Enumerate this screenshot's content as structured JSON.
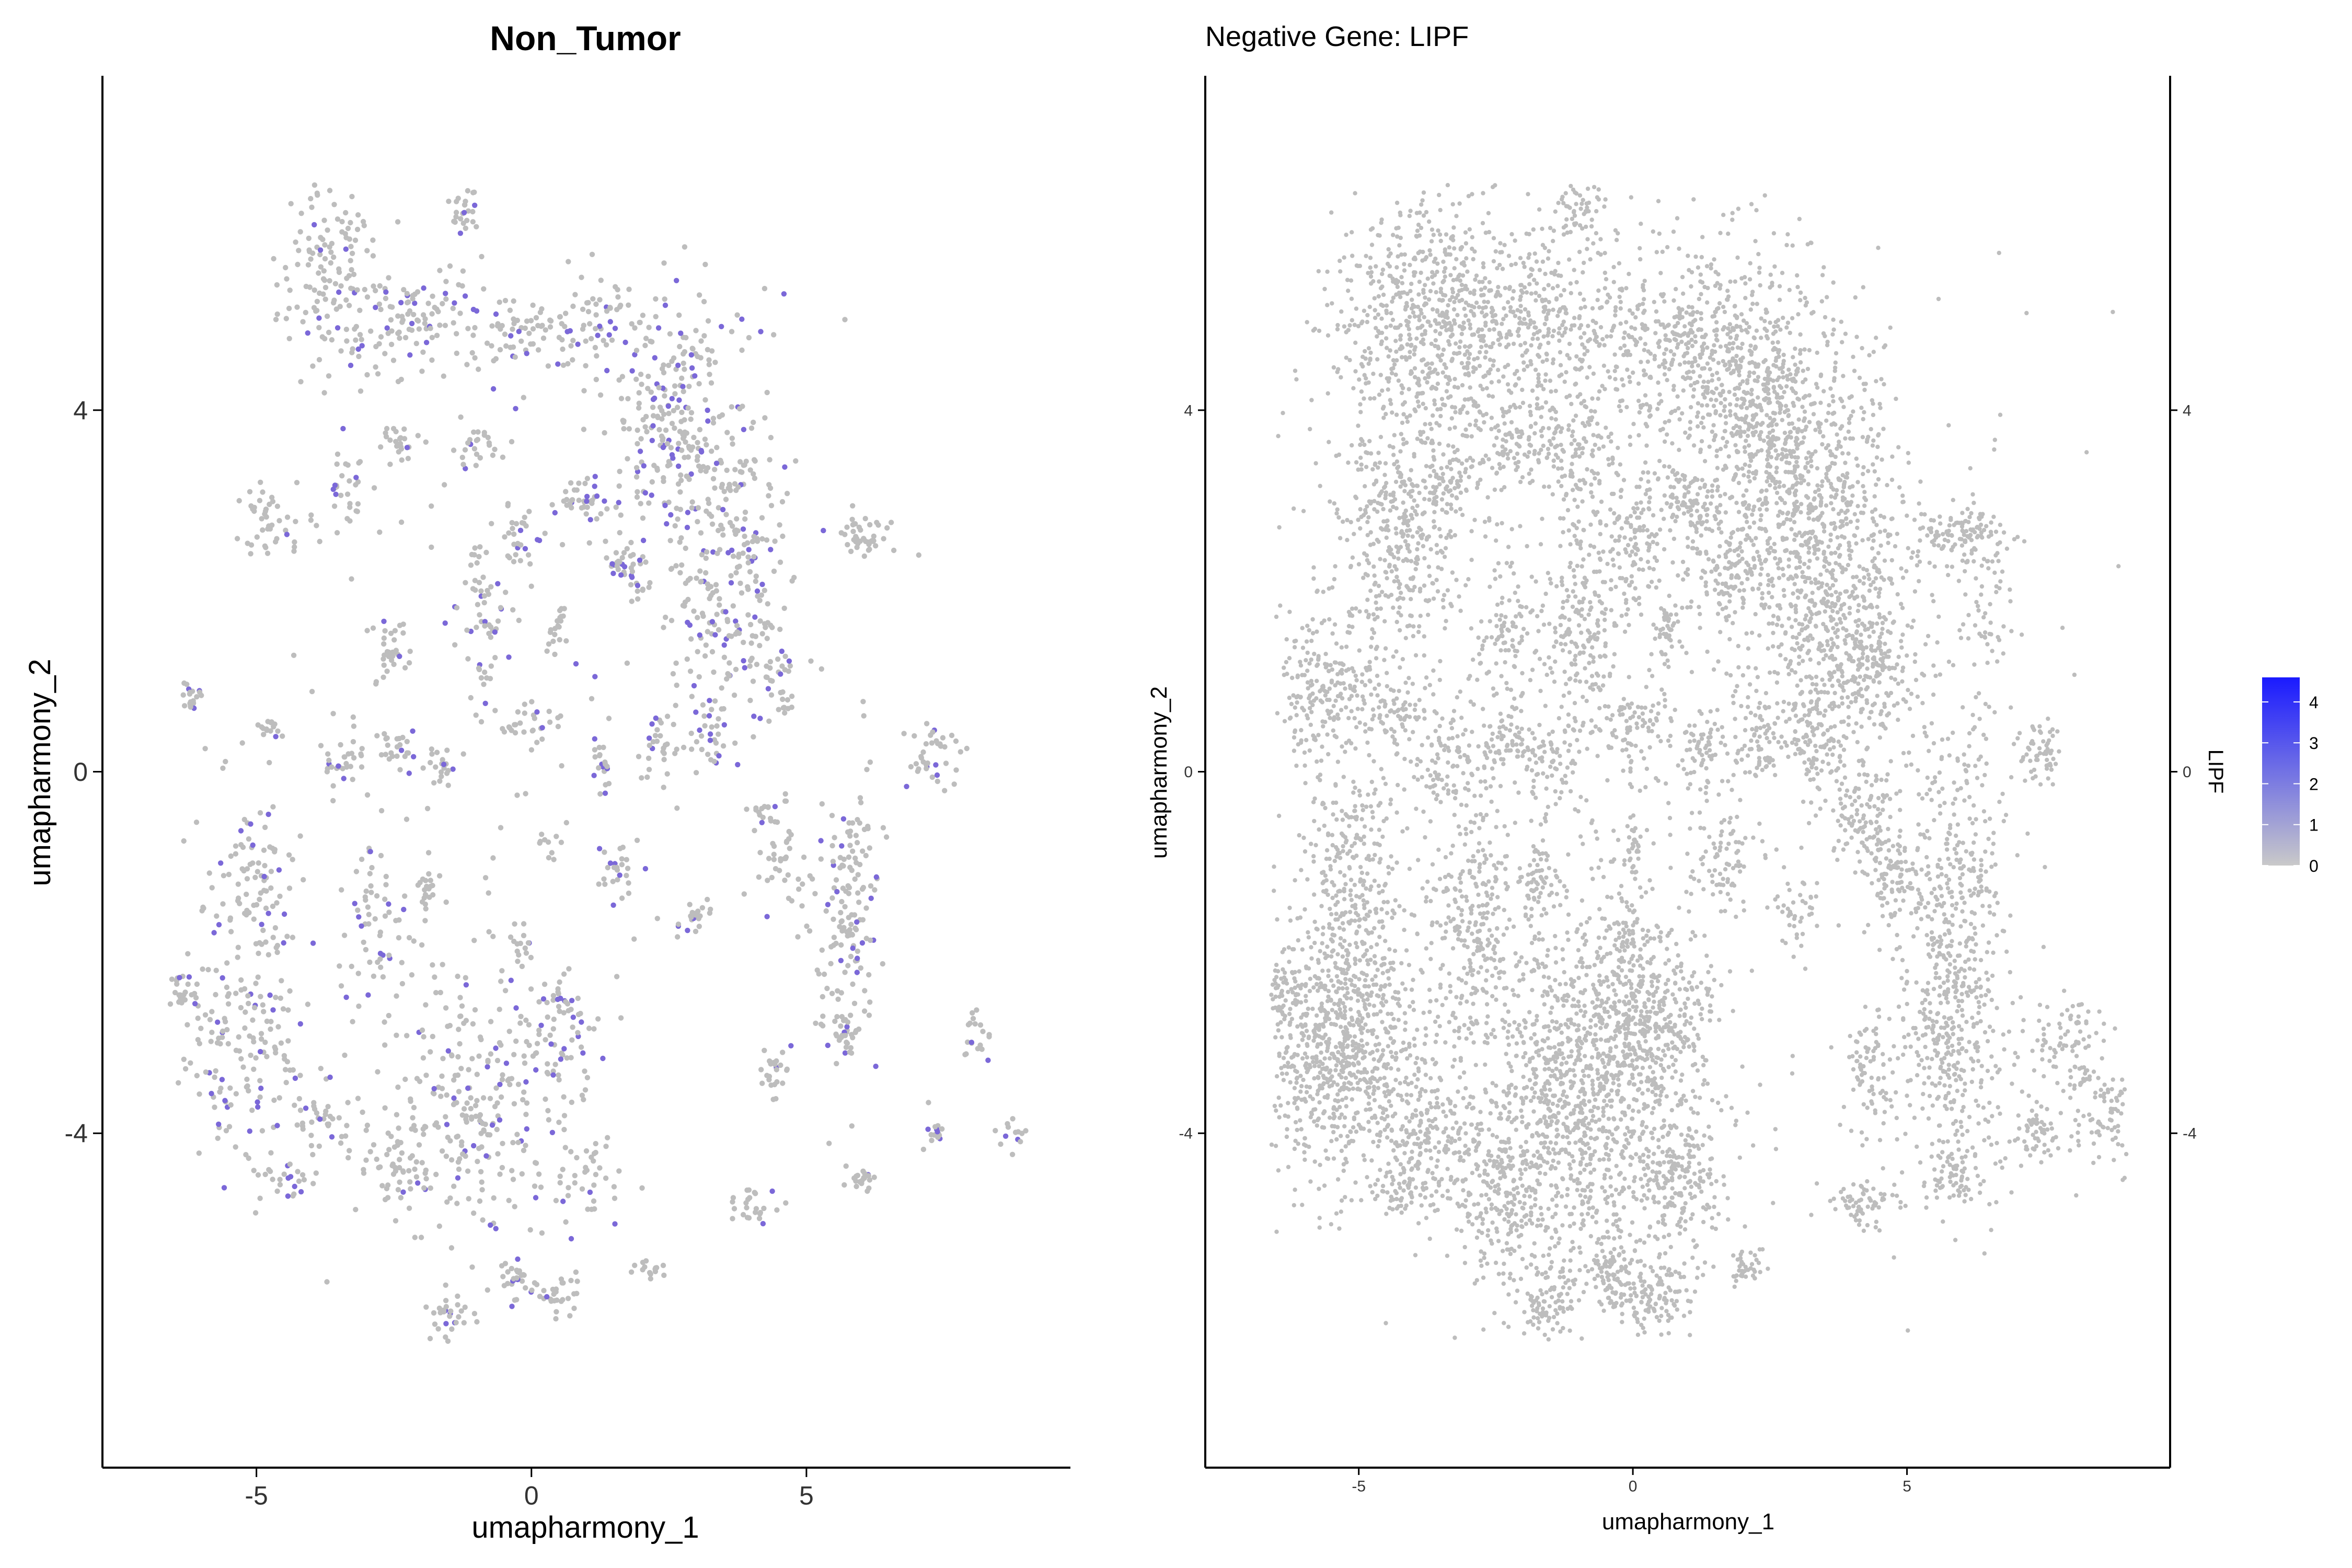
{
  "chart_data": [
    {
      "type": "scatter",
      "title": "Non_Tumor",
      "xlabel": "umapharmony_1",
      "ylabel": "umapharmony_2",
      "xlim": [
        -7.8,
        9.8
      ],
      "ylim": [
        -7.7,
        7.7
      ],
      "x_ticks": [
        -5,
        0,
        5
      ],
      "y_ticks": [
        -4,
        0,
        4
      ],
      "x_tick_labels": [
        "-5",
        "0",
        "5"
      ],
      "y_tick_labels": [
        "-4",
        "0",
        "4"
      ],
      "grid": false,
      "point_color_zero": "#bdbdbd",
      "point_color_expr": "#7b68d8",
      "clusters": [
        {
          "x": -3.6,
          "y": 5.5,
          "sx": 0.5,
          "sy": 0.55,
          "n": 130,
          "f": 0.08
        },
        {
          "x": -1.2,
          "y": 6.2,
          "sx": 0.15,
          "sy": 0.15,
          "n": 25,
          "f": 0.04
        },
        {
          "x": -2.0,
          "y": 5.0,
          "sx": 0.8,
          "sy": 0.3,
          "n": 120,
          "f": 0.1
        },
        {
          "x": 0.5,
          "y": 4.9,
          "sx": 0.9,
          "sy": 0.25,
          "n": 120,
          "f": 0.15
        },
        {
          "x": 2.6,
          "y": 3.9,
          "sx": 0.6,
          "sy": 0.7,
          "n": 240,
          "f": 0.12
        },
        {
          "x": 3.6,
          "y": 2.2,
          "sx": 0.6,
          "sy": 0.9,
          "n": 250,
          "f": 0.15
        },
        {
          "x": -4.6,
          "y": 2.8,
          "sx": 0.35,
          "sy": 0.2,
          "n": 45,
          "f": 0.1
        },
        {
          "x": -3.4,
          "y": 3.2,
          "sx": 0.25,
          "sy": 0.2,
          "n": 30,
          "f": 0.1
        },
        {
          "x": -2.4,
          "y": 3.6,
          "sx": 0.2,
          "sy": 0.1,
          "n": 25,
          "f": 0.1
        },
        {
          "x": -1.0,
          "y": 3.6,
          "sx": 0.2,
          "sy": 0.12,
          "n": 25,
          "f": 0.1
        },
        {
          "x": -0.2,
          "y": 2.6,
          "sx": 0.15,
          "sy": 0.2,
          "n": 25,
          "f": 0.1
        },
        {
          "x": 1.0,
          "y": 3.0,
          "sx": 0.25,
          "sy": 0.2,
          "n": 40,
          "f": 0.2
        },
        {
          "x": -0.9,
          "y": 1.8,
          "sx": 0.25,
          "sy": 0.5,
          "n": 60,
          "f": 0.15
        },
        {
          "x": -2.6,
          "y": 1.4,
          "sx": 0.15,
          "sy": 0.2,
          "n": 30,
          "f": 0.1
        },
        {
          "x": 1.7,
          "y": 2.2,
          "sx": 0.2,
          "sy": 0.15,
          "n": 35,
          "f": 0.15
        },
        {
          "x": 0.5,
          "y": 1.6,
          "sx": 0.1,
          "sy": 0.15,
          "n": 20,
          "f": 0.05
        },
        {
          "x": -6.2,
          "y": 0.8,
          "sx": 0.15,
          "sy": 0.12,
          "n": 20,
          "f": 0.15
        },
        {
          "x": -4.8,
          "y": 0.5,
          "sx": 0.15,
          "sy": 0.1,
          "n": 15,
          "f": 0.1
        },
        {
          "x": -3.4,
          "y": 0.1,
          "sx": 0.2,
          "sy": 0.15,
          "n": 25,
          "f": 0.1
        },
        {
          "x": -2.5,
          "y": 0.3,
          "sx": 0.2,
          "sy": 0.15,
          "n": 25,
          "f": 0.1
        },
        {
          "x": -1.6,
          "y": 0.1,
          "sx": 0.15,
          "sy": 0.15,
          "n": 20,
          "f": 0.1
        },
        {
          "x": 0.0,
          "y": 0.5,
          "sx": 0.25,
          "sy": 0.1,
          "n": 25,
          "f": 0.1
        },
        {
          "x": 1.3,
          "y": 0.1,
          "sx": 0.12,
          "sy": 0.15,
          "n": 20,
          "f": 0.3
        },
        {
          "x": 2.3,
          "y": 0.3,
          "sx": 0.15,
          "sy": 0.2,
          "n": 25,
          "f": 0.2
        },
        {
          "x": 3.2,
          "y": 0.4,
          "sx": 0.2,
          "sy": 0.2,
          "n": 30,
          "f": 0.15
        },
        {
          "x": 4.5,
          "y": 1.0,
          "sx": 0.2,
          "sy": 0.2,
          "n": 30,
          "f": 0.1
        },
        {
          "x": 6.0,
          "y": 2.6,
          "sx": 0.3,
          "sy": 0.12,
          "n": 40,
          "f": 0.1
        },
        {
          "x": 7.3,
          "y": 0.2,
          "sx": 0.25,
          "sy": 0.2,
          "n": 40,
          "f": 0.1
        },
        {
          "x": 4.2,
          "y": -0.5,
          "sx": 0.15,
          "sy": 0.15,
          "n": 20,
          "f": 0.1
        },
        {
          "x": 4.6,
          "y": -1.0,
          "sx": 0.2,
          "sy": 0.2,
          "n": 30,
          "f": 0.1
        },
        {
          "x": 5.8,
          "y": -1.6,
          "sx": 0.3,
          "sy": 0.8,
          "n": 150,
          "f": 0.12
        },
        {
          "x": 5.7,
          "y": -2.8,
          "sx": 0.12,
          "sy": 0.2,
          "n": 25,
          "f": 0.05
        },
        {
          "x": -5.0,
          "y": -1.2,
          "sx": 0.4,
          "sy": 0.4,
          "n": 80,
          "f": 0.12
        },
        {
          "x": -2.8,
          "y": -1.8,
          "sx": 0.3,
          "sy": 0.6,
          "n": 60,
          "f": 0.1
        },
        {
          "x": -1.9,
          "y": -1.3,
          "sx": 0.1,
          "sy": 0.2,
          "n": 20,
          "f": 0.1
        },
        {
          "x": -0.2,
          "y": -1.9,
          "sx": 0.1,
          "sy": 0.15,
          "n": 15,
          "f": 0.2
        },
        {
          "x": 1.6,
          "y": -1.0,
          "sx": 0.15,
          "sy": 0.2,
          "n": 25,
          "f": 0.15
        },
        {
          "x": 2.9,
          "y": -1.6,
          "sx": 0.15,
          "sy": 0.1,
          "n": 20,
          "f": 0.05
        },
        {
          "x": 0.3,
          "y": -0.8,
          "sx": 0.08,
          "sy": 0.1,
          "n": 10,
          "f": 0.05
        },
        {
          "x": -5.3,
          "y": -3.0,
          "sx": 0.7,
          "sy": 0.7,
          "n": 180,
          "f": 0.15
        },
        {
          "x": -6.3,
          "y": -2.4,
          "sx": 0.15,
          "sy": 0.15,
          "n": 20,
          "f": 0.1
        },
        {
          "x": -3.8,
          "y": -3.9,
          "sx": 0.35,
          "sy": 0.25,
          "n": 40,
          "f": 0.1
        },
        {
          "x": -4.4,
          "y": -4.5,
          "sx": 0.2,
          "sy": 0.1,
          "n": 20,
          "f": 0.1
        },
        {
          "x": -2.4,
          "y": -4.4,
          "sx": 0.3,
          "sy": 0.3,
          "n": 50,
          "f": 0.1
        },
        {
          "x": -1.2,
          "y": -3.8,
          "sx": 0.7,
          "sy": 0.8,
          "n": 220,
          "f": 0.1
        },
        {
          "x": 0.3,
          "y": -3.1,
          "sx": 0.5,
          "sy": 0.3,
          "n": 70,
          "f": 0.2
        },
        {
          "x": 0.6,
          "y": -2.5,
          "sx": 0.15,
          "sy": 0.15,
          "n": 20,
          "f": 0.1
        },
        {
          "x": 1.0,
          "y": -4.5,
          "sx": 0.3,
          "sy": 0.3,
          "n": 40,
          "f": 0.1
        },
        {
          "x": -1.5,
          "y": -6.0,
          "sx": 0.2,
          "sy": 0.12,
          "n": 30,
          "f": 0.1
        },
        {
          "x": -0.3,
          "y": -5.6,
          "sx": 0.15,
          "sy": 0.1,
          "n": 25,
          "f": 0.15
        },
        {
          "x": 0.5,
          "y": -5.8,
          "sx": 0.2,
          "sy": 0.12,
          "n": 30,
          "f": 0.1
        },
        {
          "x": 2.1,
          "y": -5.5,
          "sx": 0.15,
          "sy": 0.06,
          "n": 15,
          "f": 0.05
        },
        {
          "x": 4.4,
          "y": -3.3,
          "sx": 0.15,
          "sy": 0.2,
          "n": 25,
          "f": 0.1
        },
        {
          "x": 4.1,
          "y": -4.8,
          "sx": 0.2,
          "sy": 0.12,
          "n": 25,
          "f": 0.1
        },
        {
          "x": 6.0,
          "y": -4.5,
          "sx": 0.15,
          "sy": 0.1,
          "n": 20,
          "f": 0.05
        },
        {
          "x": 7.4,
          "y": -4.0,
          "sx": 0.12,
          "sy": 0.1,
          "n": 15,
          "f": 0.1
        },
        {
          "x": 8.1,
          "y": -3.0,
          "sx": 0.15,
          "sy": 0.15,
          "n": 20,
          "f": 0.05
        },
        {
          "x": 8.8,
          "y": -4.0,
          "sx": 0.15,
          "sy": 0.12,
          "n": 15,
          "f": 0.1
        },
        {
          "x": 1.8,
          "y": 2.0,
          "sx": 2.5,
          "sy": 2.0,
          "n": 80,
          "f": 0.15
        },
        {
          "x": -2.0,
          "y": -1.5,
          "sx": 2.5,
          "sy": 2.0,
          "n": 80,
          "f": 0.1
        }
      ]
    },
    {
      "type": "scatter",
      "title": "Negative Gene: LIPF",
      "xlabel": "umapharmony_1",
      "ylabel": "umapharmony_2",
      "xlim": [
        -7.8,
        9.8
      ],
      "ylim": [
        -7.7,
        7.7
      ],
      "x_ticks": [
        -5,
        0,
        5
      ],
      "y_ticks": [
        -4,
        0,
        4
      ],
      "x_tick_labels": [
        "-5",
        "0",
        "5"
      ],
      "y_tick_labels": [
        "-4",
        "0",
        "4"
      ],
      "grid": false,
      "point_color": "#bdbdbd",
      "legend": {
        "title": "LIPF",
        "position": "right",
        "type": "colorbar",
        "low_color": "#c9c9c9",
        "high_color": "#1a1aff",
        "min": 0,
        "max": 4.6,
        "ticks": [
          0,
          1,
          2,
          3,
          4
        ],
        "tick_labels": [
          "0",
          "1",
          "2",
          "3",
          "4"
        ]
      },
      "clusters": [
        {
          "x": -3.8,
          "y": 5.0,
          "sx": 0.8,
          "sy": 0.8,
          "n": 650
        },
        {
          "x": -1.0,
          "y": 6.2,
          "sx": 0.2,
          "sy": 0.2,
          "n": 50
        },
        {
          "x": -1.5,
          "y": 4.9,
          "sx": 1.2,
          "sy": 0.6,
          "n": 500
        },
        {
          "x": 1.2,
          "y": 4.6,
          "sx": 0.8,
          "sy": 0.5,
          "n": 350
        },
        {
          "x": 2.6,
          "y": 3.7,
          "sx": 0.7,
          "sy": 0.9,
          "n": 700
        },
        {
          "x": 3.7,
          "y": 2.0,
          "sx": 0.7,
          "sy": 1.1,
          "n": 750
        },
        {
          "x": -4.2,
          "y": 2.6,
          "sx": 0.6,
          "sy": 0.6,
          "n": 350
        },
        {
          "x": -3.3,
          "y": 3.2,
          "sx": 0.3,
          "sy": 0.2,
          "n": 70
        },
        {
          "x": -2.1,
          "y": 3.6,
          "sx": 0.4,
          "sy": 0.2,
          "n": 90
        },
        {
          "x": -1.0,
          "y": 3.5,
          "sx": 0.4,
          "sy": 0.3,
          "n": 90
        },
        {
          "x": 0.0,
          "y": 2.6,
          "sx": 0.3,
          "sy": 0.4,
          "n": 110
        },
        {
          "x": 1.0,
          "y": 3.0,
          "sx": 0.3,
          "sy": 0.2,
          "n": 90
        },
        {
          "x": -0.9,
          "y": 1.6,
          "sx": 0.35,
          "sy": 0.7,
          "n": 220
        },
        {
          "x": -2.3,
          "y": 1.6,
          "sx": 0.3,
          "sy": 0.4,
          "n": 90
        },
        {
          "x": 1.6,
          "y": 2.2,
          "sx": 0.3,
          "sy": 0.3,
          "n": 90
        },
        {
          "x": 0.6,
          "y": 1.6,
          "sx": 0.15,
          "sy": 0.15,
          "n": 40
        },
        {
          "x": -5.6,
          "y": 0.9,
          "sx": 0.6,
          "sy": 0.5,
          "n": 260
        },
        {
          "x": -4.3,
          "y": 0.6,
          "sx": 0.3,
          "sy": 0.3,
          "n": 70
        },
        {
          "x": -3.4,
          "y": 0.2,
          "sx": 0.3,
          "sy": 0.3,
          "n": 80
        },
        {
          "x": -2.4,
          "y": 0.3,
          "sx": 0.3,
          "sy": 0.2,
          "n": 80
        },
        {
          "x": -1.5,
          "y": 0.1,
          "sx": 0.25,
          "sy": 0.2,
          "n": 60
        },
        {
          "x": 0.0,
          "y": 0.5,
          "sx": 0.3,
          "sy": 0.2,
          "n": 60
        },
        {
          "x": 1.3,
          "y": 0.2,
          "sx": 0.2,
          "sy": 0.25,
          "n": 60
        },
        {
          "x": 2.3,
          "y": 0.4,
          "sx": 0.25,
          "sy": 0.3,
          "n": 70
        },
        {
          "x": 3.3,
          "y": 0.4,
          "sx": 0.3,
          "sy": 0.3,
          "n": 90
        },
        {
          "x": 4.4,
          "y": 1.1,
          "sx": 0.3,
          "sy": 0.4,
          "n": 110
        },
        {
          "x": 6.0,
          "y": 2.6,
          "sx": 0.45,
          "sy": 0.15,
          "n": 130
        },
        {
          "x": 6.4,
          "y": 1.6,
          "sx": 0.3,
          "sy": 0.4,
          "n": 50
        },
        {
          "x": 7.4,
          "y": 0.2,
          "sx": 0.2,
          "sy": 0.2,
          "n": 60
        },
        {
          "x": 4.2,
          "y": -0.6,
          "sx": 0.3,
          "sy": 0.3,
          "n": 90
        },
        {
          "x": 4.8,
          "y": -1.2,
          "sx": 0.3,
          "sy": 0.3,
          "n": 90
        },
        {
          "x": 5.8,
          "y": -1.8,
          "sx": 0.5,
          "sy": 1.2,
          "n": 450
        },
        {
          "x": 5.6,
          "y": -2.9,
          "sx": 0.2,
          "sy": 0.3,
          "n": 70
        },
        {
          "x": -5.1,
          "y": -1.4,
          "sx": 0.5,
          "sy": 0.7,
          "n": 300
        },
        {
          "x": -2.9,
          "y": -1.8,
          "sx": 0.4,
          "sy": 0.7,
          "n": 230
        },
        {
          "x": -1.8,
          "y": -1.3,
          "sx": 0.2,
          "sy": 0.3,
          "n": 60
        },
        {
          "x": -0.1,
          "y": -1.9,
          "sx": 0.25,
          "sy": 0.3,
          "n": 70
        },
        {
          "x": 1.7,
          "y": -1.0,
          "sx": 0.25,
          "sy": 0.3,
          "n": 70
        },
        {
          "x": 3.0,
          "y": -1.6,
          "sx": 0.2,
          "sy": 0.2,
          "n": 40
        },
        {
          "x": 0.0,
          "y": -0.8,
          "sx": 0.1,
          "sy": 0.2,
          "n": 30
        },
        {
          "x": -5.4,
          "y": -3.1,
          "sx": 0.8,
          "sy": 0.7,
          "n": 800
        },
        {
          "x": -6.4,
          "y": -2.4,
          "sx": 0.2,
          "sy": 0.2,
          "n": 50
        },
        {
          "x": -3.8,
          "y": -4.0,
          "sx": 0.5,
          "sy": 0.4,
          "n": 180
        },
        {
          "x": -4.3,
          "y": -4.6,
          "sx": 0.25,
          "sy": 0.15,
          "n": 50
        },
        {
          "x": -2.4,
          "y": -4.6,
          "sx": 0.5,
          "sy": 0.5,
          "n": 220
        },
        {
          "x": -1.0,
          "y": -3.6,
          "sx": 0.9,
          "sy": 1.0,
          "n": 1000
        },
        {
          "x": 0.3,
          "y": -2.8,
          "sx": 0.6,
          "sy": 0.5,
          "n": 350
        },
        {
          "x": 0.9,
          "y": -4.5,
          "sx": 0.4,
          "sy": 0.4,
          "n": 200
        },
        {
          "x": -1.5,
          "y": -5.9,
          "sx": 0.25,
          "sy": 0.25,
          "n": 80
        },
        {
          "x": -0.3,
          "y": -5.6,
          "sx": 0.3,
          "sy": 0.2,
          "n": 100
        },
        {
          "x": 0.5,
          "y": -5.8,
          "sx": 0.3,
          "sy": 0.2,
          "n": 100
        },
        {
          "x": 2.1,
          "y": -5.5,
          "sx": 0.2,
          "sy": 0.1,
          "n": 40
        },
        {
          "x": 4.3,
          "y": -3.3,
          "sx": 0.2,
          "sy": 0.3,
          "n": 70
        },
        {
          "x": 4.1,
          "y": -4.8,
          "sx": 0.3,
          "sy": 0.15,
          "n": 70
        },
        {
          "x": 5.9,
          "y": -4.5,
          "sx": 0.25,
          "sy": 0.15,
          "n": 60
        },
        {
          "x": 7.4,
          "y": -4.0,
          "sx": 0.2,
          "sy": 0.15,
          "n": 50
        },
        {
          "x": 8.0,
          "y": -3.0,
          "sx": 0.3,
          "sy": 0.3,
          "n": 80
        },
        {
          "x": 8.6,
          "y": -3.8,
          "sx": 0.3,
          "sy": 0.3,
          "n": 80
        },
        {
          "x": 6.0,
          "y": -3.5,
          "sx": 0.8,
          "sy": 0.6,
          "n": 150
        },
        {
          "x": 1.0,
          "y": 2.5,
          "sx": 2.8,
          "sy": 2.2,
          "n": 400
        },
        {
          "x": -2.0,
          "y": -1.8,
          "sx": 2.8,
          "sy": 2.4,
          "n": 400
        }
      ]
    }
  ]
}
